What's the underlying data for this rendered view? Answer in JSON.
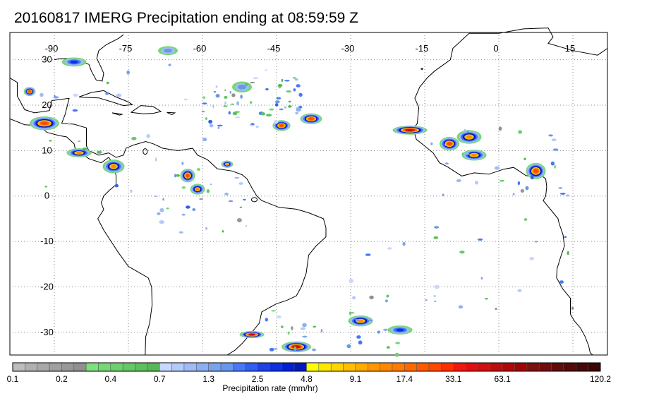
{
  "title": "20160817 IMERG Precipitation ending at 08:59:59 Z",
  "map": {
    "lon_labels": [
      "-90",
      "-75",
      "-60",
      "-45",
      "-30",
      "-15",
      "0",
      "15"
    ],
    "lat_labels": [
      "30",
      "20",
      "10",
      "0",
      "-10",
      "-20",
      "-30"
    ],
    "lon_values": [
      -90,
      -75,
      -60,
      -45,
      -30,
      -15,
      0,
      15
    ],
    "lat_values": [
      30,
      20,
      10,
      0,
      -10,
      -20,
      -30
    ],
    "lon_range": [
      -99,
      22
    ],
    "lat_range": [
      36,
      -35
    ],
    "grid": "dotted"
  },
  "colorbar": {
    "title": "Precipitation rate (mm/hr)",
    "tick_labels": [
      "0.1",
      "0.2",
      "0.4",
      "0.7",
      "1.3",
      "2.5",
      "4.8",
      "9.1",
      "17.4",
      "33.1",
      "63.1",
      "120.2"
    ],
    "colors": [
      "#bdbdbd",
      "#b0b0b0",
      "#a8a8a8",
      "#a0a0a0",
      "#989898",
      "#909090",
      "#7de07d",
      "#74d874",
      "#6cd06c",
      "#64c864",
      "#5cc05c",
      "#56b856",
      "#c8d8ff",
      "#b4cafa",
      "#a0bcf6",
      "#8cb0f2",
      "#78a4ee",
      "#6898ea",
      "#4878f8",
      "#3060f0",
      "#2040e8",
      "#1030e0",
      "#0020d8",
      "#0018c0",
      "#ffff00",
      "#ffe800",
      "#ffd400",
      "#ffc000",
      "#ffac00",
      "#ff9800",
      "#ff8800",
      "#ff7a00",
      "#ff6a00",
      "#ff5a00",
      "#ff4800",
      "#ff3000",
      "#f01810",
      "#e01010",
      "#d01010",
      "#c00c0c",
      "#b00808",
      "#a00404",
      "#7c1010",
      "#6e0e0e",
      "#600c0c",
      "#520a0a",
      "#460808",
      "#3a0606"
    ]
  },
  "precip_systems": [
    {
      "lon": -44,
      "lat": 15.5,
      "rx": 1.8,
      "ry": 1.2,
      "peak": 17.4
    },
    {
      "lon": -38,
      "lat": 17,
      "rx": 2.2,
      "ry": 1.2,
      "peak": 17.4
    },
    {
      "lon": -18,
      "lat": 14.5,
      "rx": 3.5,
      "ry": 1.0,
      "peak": 33.1
    },
    {
      "lon": -10,
      "lat": 11.5,
      "rx": 2.0,
      "ry": 1.5,
      "peak": 17.4
    },
    {
      "lon": -6,
      "lat": 13,
      "rx": 2.5,
      "ry": 1.5,
      "peak": 9.1
    },
    {
      "lon": -5,
      "lat": 9,
      "rx": 2.5,
      "ry": 1.2,
      "peak": 9.1
    },
    {
      "lon": 7.5,
      "lat": 5.5,
      "rx": 2.0,
      "ry": 1.8,
      "peak": 17.4
    },
    {
      "lon": -92,
      "lat": 16,
      "rx": 3.0,
      "ry": 1.5,
      "peak": 17.4
    },
    {
      "lon": -85,
      "lat": 9.5,
      "rx": 2.5,
      "ry": 1.0,
      "peak": 9.1
    },
    {
      "lon": -78,
      "lat": 6.5,
      "rx": 2.2,
      "ry": 1.5,
      "peak": 9.1
    },
    {
      "lon": -63,
      "lat": 4.5,
      "rx": 1.5,
      "ry": 1.5,
      "peak": 17.4
    },
    {
      "lon": -61,
      "lat": 1.5,
      "rx": 1.5,
      "ry": 1.2,
      "peak": 9.1
    },
    {
      "lon": -55,
      "lat": 7.0,
      "rx": 1.2,
      "ry": 0.8,
      "peak": 9.1
    },
    {
      "lon": -95,
      "lat": 23,
      "rx": 1.2,
      "ry": 1.0,
      "peak": 17.4
    },
    {
      "lon": -50,
      "lat": -30.5,
      "rx": 2.5,
      "ry": 0.8,
      "peak": 33.1
    },
    {
      "lon": -41,
      "lat": -33.2,
      "rx": 3.0,
      "ry": 1.2,
      "peak": 33.1
    },
    {
      "lon": -28,
      "lat": -27.5,
      "rx": 2.5,
      "ry": 1.2,
      "peak": 9.1
    },
    {
      "lon": -20,
      "lat": -29.5,
      "rx": 2.5,
      "ry": 1.0,
      "peak": 2.5
    },
    {
      "lon": -86,
      "lat": 29.5,
      "rx": 2.5,
      "ry": 1.0,
      "peak": 2.5
    },
    {
      "lon": -67,
      "lat": 32,
      "rx": 2.0,
      "ry": 1.0,
      "peak": 1.3
    },
    {
      "lon": -52,
      "lat": 24,
      "rx": 2.0,
      "ry": 1.2,
      "peak": 1.3
    }
  ]
}
